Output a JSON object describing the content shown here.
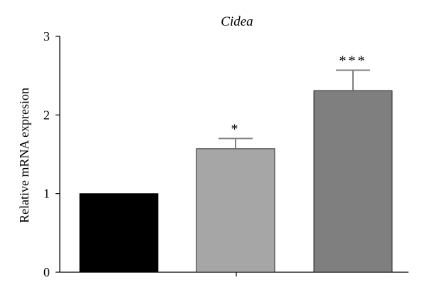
{
  "chart_data": {
    "type": "bar",
    "title": "Cidea",
    "ylabel": "Relative mRNA expresion",
    "xlabel": "",
    "ylim": [
      0,
      3
    ],
    "yticks": [
      0,
      1,
      2,
      3
    ],
    "categories": [
      "",
      "",
      ""
    ],
    "values": [
      1.0,
      1.57,
      2.31
    ],
    "errors": [
      0,
      0.13,
      0.26
    ],
    "significance": [
      "",
      "*",
      "***"
    ],
    "colors": [
      "#000000",
      "#a6a6a6",
      "#7f7f7f"
    ],
    "error_color": "#808080",
    "grid": false,
    "legend": "none"
  }
}
